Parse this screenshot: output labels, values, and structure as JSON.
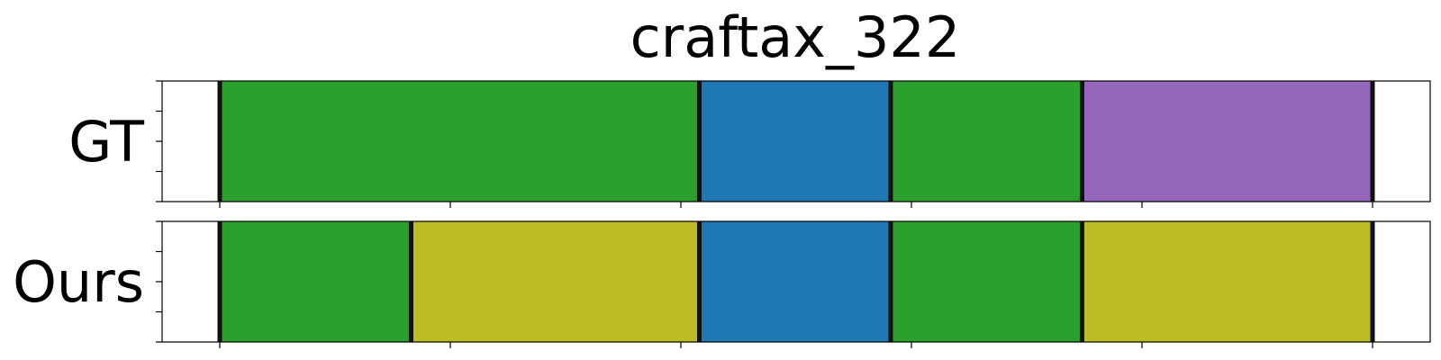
{
  "chart_data": {
    "type": "segmentation",
    "title": "craftax_322",
    "xlim": [
      -25,
      525
    ],
    "x_ticks": [
      0,
      100,
      200,
      300,
      400,
      500
    ],
    "colors": {
      "green": "#2ca02c",
      "blue": "#1f77b4",
      "purple": "#9467bd",
      "olive": "#bcbd22"
    },
    "rows": [
      {
        "label": "GT",
        "segments": [
          {
            "start": 0,
            "end": 208,
            "color": "#2ca02c"
          },
          {
            "start": 208,
            "end": 291,
            "color": "#1f77b4"
          },
          {
            "start": 291,
            "end": 374,
            "color": "#2ca02c"
          },
          {
            "start": 374,
            "end": 500,
            "color": "#9467bd"
          }
        ]
      },
      {
        "label": "Ours",
        "segments": [
          {
            "start": 0,
            "end": 83,
            "color": "#2ca02c"
          },
          {
            "start": 83,
            "end": 208,
            "color": "#bcbd22"
          },
          {
            "start": 208,
            "end": 291,
            "color": "#1f77b4"
          },
          {
            "start": 291,
            "end": 374,
            "color": "#2ca02c"
          },
          {
            "start": 374,
            "end": 500,
            "color": "#bcbd22"
          }
        ]
      }
    ]
  }
}
